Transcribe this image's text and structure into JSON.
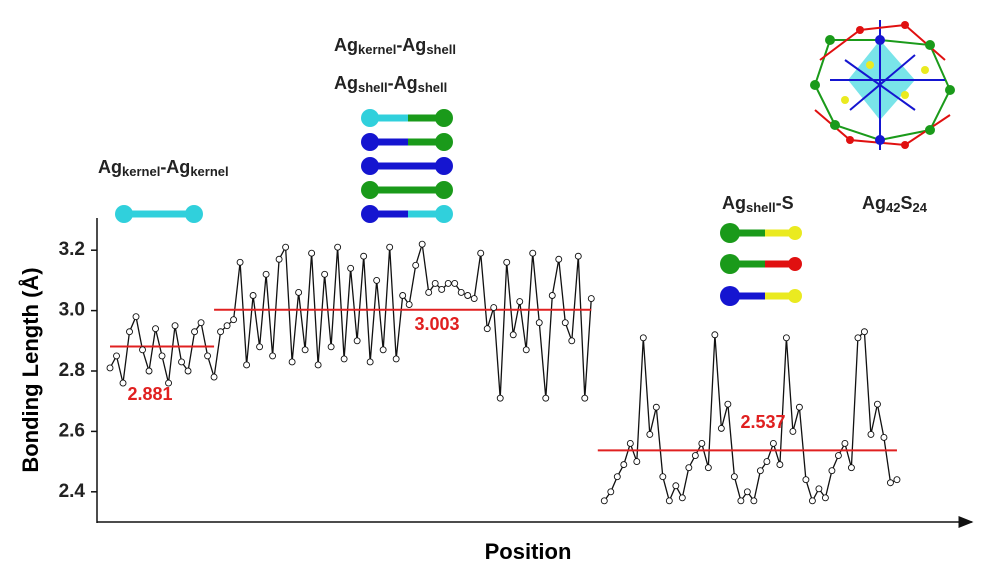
{
  "chart_data": {
    "type": "line",
    "ylabel": "Bonding Length (Å)",
    "xlabel": "Position",
    "ylim": [
      2.3,
      3.3
    ],
    "yticks": [
      2.4,
      2.6,
      2.8,
      {
        "value": 3,
        "label": "3.0"
      },
      3.2
    ],
    "xlim": [
      -1,
      134
    ],
    "color": "#111111",
    "marker_fill": "#ffffff",
    "mean_color": "#e02020",
    "x": [
      1,
      2,
      3,
      4,
      5,
      6,
      7,
      8,
      9,
      10,
      11,
      12,
      13,
      14,
      15,
      16,
      17,
      18,
      19,
      20,
      21,
      22,
      23,
      24,
      25,
      26,
      27,
      28,
      29,
      30,
      31,
      32,
      33,
      34,
      35,
      36,
      37,
      38,
      39,
      40,
      41,
      42,
      43,
      44,
      45,
      46,
      47,
      48,
      49,
      50,
      51,
      52,
      53,
      54,
      55,
      56,
      57,
      58,
      59,
      60,
      61,
      62,
      63,
      64,
      65,
      66,
      67,
      68,
      69,
      70,
      71,
      72,
      73,
      74,
      75,
      76,
      77,
      78,
      79,
      80,
      81,
      82,
      83,
      84,
      85,
      86,
      87,
      88,
      89,
      90,
      91,
      92,
      93,
      94,
      95,
      96,
      97,
      98,
      99,
      100,
      101,
      102,
      103,
      104,
      105,
      106,
      107,
      108,
      109,
      110,
      111,
      112,
      113,
      114,
      115,
      116,
      117,
      118,
      119,
      120,
      121,
      122
    ],
    "values": [
      2.81,
      2.85,
      2.76,
      2.93,
      2.98,
      2.87,
      2.8,
      2.94,
      2.85,
      2.76,
      2.95,
      2.83,
      2.8,
      2.93,
      2.96,
      2.85,
      2.78,
      2.93,
      2.95,
      2.97,
      3.16,
      2.82,
      3.05,
      2.88,
      3.12,
      2.85,
      3.17,
      3.21,
      2.83,
      3.06,
      2.87,
      3.19,
      2.82,
      3.12,
      2.88,
      3.21,
      2.84,
      3.14,
      2.9,
      3.18,
      2.83,
      3.1,
      2.87,
      3.21,
      2.84,
      3.05,
      3.02,
      3.15,
      3.22,
      3.06,
      3.09,
      3.07,
      3.09,
      3.09,
      3.06,
      3.05,
      3.04,
      3.19,
      2.94,
      3.01,
      2.71,
      3.16,
      2.92,
      3.03,
      2.87,
      3.19,
      2.96,
      2.71,
      3.05,
      3.17,
      2.96,
      2.9,
      3.18,
      2.71,
      3.04,
      null,
      2.37,
      2.4,
      2.45,
      2.49,
      2.56,
      2.5,
      2.91,
      2.59,
      2.68,
      2.45,
      2.37,
      2.42,
      2.38,
      2.48,
      2.52,
      2.56,
      2.48,
      2.92,
      2.61,
      2.69,
      2.45,
      2.37,
      2.4,
      2.37,
      2.47,
      2.5,
      2.56,
      2.49,
      2.91,
      2.6,
      2.68,
      2.44,
      2.37,
      2.41,
      2.38,
      2.47,
      2.52,
      2.56,
      2.48,
      2.91,
      2.93,
      2.59,
      2.69,
      2.58,
      2.43,
      2.44
    ],
    "mean_lines": [
      {
        "value": 2.881,
        "xrange": [
          1,
          17
        ]
      },
      {
        "value": 3.003,
        "xrange": [
          17,
          75
        ]
      },
      {
        "value": 2.537,
        "xrange": [
          76,
          122
        ]
      }
    ],
    "bond_labels": [
      {
        "parts": [
          {
            "text": "Ag"
          },
          {
            "text": "kernel",
            "sub": true
          },
          {
            "text": "-Ag"
          },
          {
            "text": "kernel",
            "sub": true
          }
        ]
      },
      {
        "parts": [
          {
            "text": "Ag"
          },
          {
            "text": "kernel",
            "sub": true
          },
          {
            "text": "-Ag"
          },
          {
            "text": "shell",
            "sub": true
          }
        ]
      },
      {
        "parts": [
          {
            "text": "Ag"
          },
          {
            "text": "shell",
            "sub": true
          },
          {
            "text": "-Ag"
          },
          {
            "text": "shell",
            "sub": true
          }
        ]
      },
      {
        "parts": [
          {
            "text": "Ag"
          },
          {
            "text": "shell",
            "sub": true
          },
          {
            "text": "-S"
          }
        ]
      },
      {
        "parts": [
          {
            "text": "Ag"
          },
          {
            "text": "42",
            "sub": true
          },
          {
            "text": "S"
          },
          {
            "text": "24",
            "sub": true
          }
        ]
      }
    ]
  }
}
